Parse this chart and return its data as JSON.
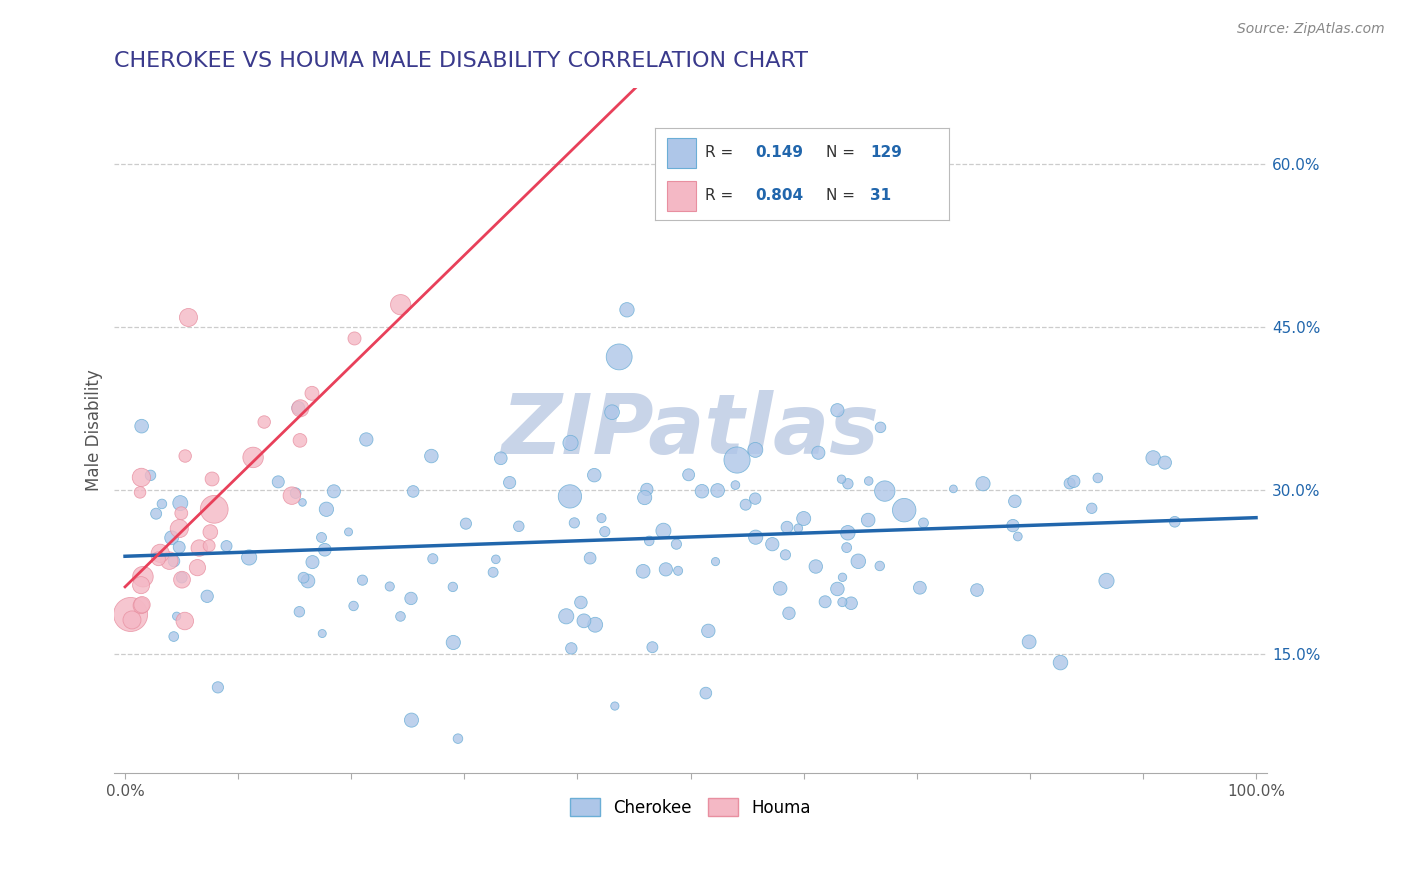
{
  "title": "CHEROKEE VS HOUMA MALE DISABILITY CORRELATION CHART",
  "source": "Source: ZipAtlas.com",
  "ylabel": "Male Disability",
  "xlim": [
    0,
    1.0
  ],
  "ytick_positions": [
    0.15,
    0.3,
    0.45,
    0.6
  ],
  "ytick_labels": [
    "15.0%",
    "30.0%",
    "45.0%",
    "60.0%"
  ],
  "grid_color": "#cccccc",
  "background_color": "#ffffff",
  "cherokee_face": "#aec6e8",
  "cherokee_edge": "#6baed6",
  "houma_face": "#f4b8c5",
  "houma_edge": "#e88fa0",
  "cherokee_line_color": "#2166ac",
  "houma_line_color": "#e8405a",
  "cherokee_R": 0.149,
  "cherokee_N": 129,
  "houma_R": 0.804,
  "houma_N": 31,
  "title_color": "#3a3a8c",
  "title_fontsize": 16,
  "legend_R_color": "#2166ac",
  "watermark_color": "#c8d4e8"
}
